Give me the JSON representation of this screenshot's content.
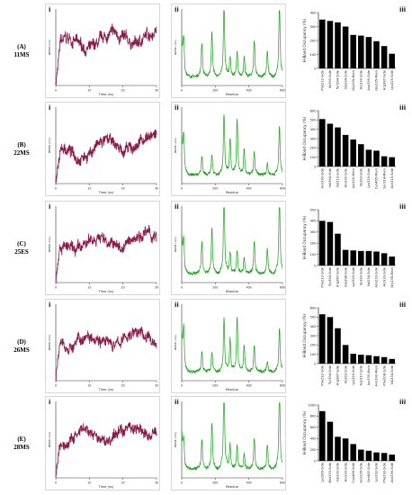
{
  "figure": {
    "panel_labels": {
      "rmsd": "i",
      "rmsf": "ii",
      "hbond": "iii"
    },
    "colors": {
      "rmsd": "#8b1a4a",
      "rmsf": "#1aa01a",
      "bar": "#000000",
      "axis": "#333333",
      "border": "#bbbbbb"
    }
  },
  "rows": [
    {
      "label_letter": "(A)",
      "label_name": "11MS",
      "rmsd": {
        "ylabel": "RMSD (nm)",
        "xlabel": "Time (ns)",
        "xticks": [
          "0",
          "10",
          "20",
          "30"
        ]
      },
      "rmsf": {
        "ylabel": "RMSF (nm)",
        "xlabel": "Residue",
        "xticks": [
          "0",
          "200",
          "400",
          "600"
        ]
      },
      "hbond": {
        "ylabel": "H-Bond Occupancy (%)",
        "yticks": [
          "0",
          "100",
          "200",
          "300",
          "400"
        ]
      }
    },
    {
      "label_letter": "(B)",
      "label_name": "22MS",
      "rmsd": {
        "ylabel": "RMSD (nm)",
        "xlabel": "Time (ns)",
        "xticks": [
          "0",
          "10",
          "20",
          "30"
        ]
      },
      "rmsf": {
        "ylabel": "RMSF (nm)",
        "xlabel": "Residue",
        "xticks": [
          "0",
          "200",
          "400",
          "600"
        ]
      },
      "hbond": {
        "ylabel": "H-Bond Occupancy (%)",
        "yticks": [
          "0",
          "100",
          "200",
          "300",
          "400",
          "500",
          "600"
        ]
      }
    },
    {
      "label_letter": "(C)",
      "label_name": "25ES",
      "rmsd": {
        "ylabel": "RMSD (nm)",
        "xlabel": "Time (ns)",
        "xticks": [
          "0",
          "10",
          "20",
          "30"
        ]
      },
      "rmsf": {
        "ylabel": "RMSF (nm)",
        "xlabel": "Residue",
        "xticks": [
          "0",
          "200",
          "400",
          "600"
        ]
      },
      "hbond": {
        "ylabel": "H-Bond Occupancy (%)",
        "yticks": [
          "0",
          "100",
          "200",
          "300",
          "400",
          "500"
        ]
      }
    },
    {
      "label_letter": "(D)",
      "label_name": "26MS",
      "rmsd": {
        "ylabel": "RMSD (nm)",
        "xlabel": "Time (ns)",
        "xticks": [
          "0",
          "10",
          "20",
          "30"
        ]
      },
      "rmsf": {
        "ylabel": "RMSF (nm)",
        "xlabel": "Residue",
        "xticks": [
          "0",
          "200",
          "400",
          "600"
        ]
      },
      "hbond": {
        "ylabel": "H-Bond Occupancy (%)",
        "yticks": [
          "0",
          "100",
          "200",
          "300",
          "400",
          "500",
          "600"
        ]
      }
    },
    {
      "label_letter": "(E)",
      "label_name": "28MS",
      "rmsd": {
        "ylabel": "RMSD (nm)",
        "xlabel": "Time (ns)",
        "xticks": [
          "0",
          "10",
          "20",
          "30"
        ]
      },
      "rmsf": {
        "ylabel": "RMSF (nm)",
        "xlabel": "Residue",
        "xticks": [
          "0",
          "200",
          "400",
          "600"
        ]
      },
      "hbond": {
        "ylabel": "H-Bond Occupancy (%)",
        "yticks": [
          "0",
          "200",
          "400",
          "600",
          "800",
          "1000"
        ]
      }
    }
  ],
  "chart_data": [
    {
      "type": "bar",
      "row": "11MS",
      "categories": [
        "Phe212-Side",
        "Ile393-Side",
        "Tyr394-Side",
        "Val234-Side",
        "Gly235-Main",
        "His330-Side",
        "Asp399-Side",
        "Gly235-Main",
        "Arg387-Side",
        "Lys329-Side"
      ],
      "values": [
        350,
        340,
        330,
        300,
        240,
        235,
        225,
        195,
        160,
        105
      ],
      "ylabel": "H-Bond Occupancy (%)",
      "ylim": [
        0,
        400
      ]
    },
    {
      "type": "bar",
      "row": "22MS",
      "categories": [
        "Asn330-Side",
        "Val394-Side",
        "Val213-Side",
        "His330-Side",
        "Lys330-Main",
        "Ile393-Side",
        "Lys329-Side",
        "Cys465-Main",
        "Ser314-Main",
        "Asn319-Side"
      ],
      "values": [
        510,
        460,
        420,
        340,
        290,
        240,
        180,
        170,
        110,
        100
      ],
      "ylabel": "H-Bond Occupancy (%)",
      "ylim": [
        0,
        600
      ]
    },
    {
      "type": "bar",
      "row": "25ES",
      "categories": [
        "Phe212-Side",
        "Tyr394-Side",
        "Arg387-Side",
        "Glu398-Side",
        "Lys329-Side",
        "Ile393-Side",
        "Val234-Side",
        "Asn233-Side",
        "His330-Side",
        "Gly235-Main"
      ],
      "values": [
        400,
        390,
        285,
        140,
        135,
        130,
        130,
        125,
        110,
        80
      ],
      "ylabel": "H-Bond Occupancy (%)",
      "ylim": [
        0,
        500
      ]
    },
    {
      "type": "bar",
      "row": "26MS",
      "categories": [
        "Phe212-Side",
        "Tyr394-Side",
        "Arg387-Side",
        "Ile393-Side",
        "Lys329-Side",
        "Asp317-Side",
        "Lys330-Main",
        "Asn390-Main",
        "Phe208-Side",
        "Val234-Side"
      ],
      "values": [
        530,
        500,
        380,
        200,
        105,
        95,
        90,
        80,
        70,
        50
      ],
      "ylabel": "H-Bond Occupancy (%)",
      "ylim": [
        0,
        600
      ]
    },
    {
      "type": "bar",
      "row": "28MS",
      "categories": [
        "Lys289-Side",
        "Met333-Side",
        "Val330-Side",
        "His330-Side",
        "Cys465-Side",
        "Asn335-Side",
        "Ser462-Side",
        "Lys332-Side",
        "Phe290-Side",
        "Asn336-Side"
      ],
      "values": [
        890,
        700,
        430,
        400,
        300,
        200,
        180,
        150,
        140,
        110
      ],
      "ylabel": "H-Bond Occupancy (%)",
      "ylim": [
        0,
        1000
      ]
    }
  ]
}
